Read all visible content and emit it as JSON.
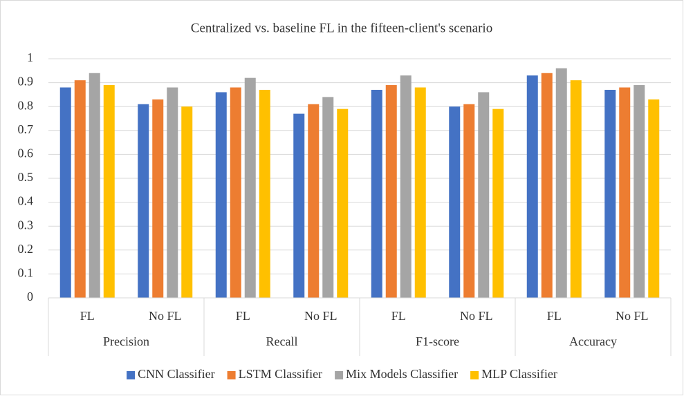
{
  "chart_data": {
    "type": "bar",
    "title": "Centralized vs. baseline FL in the fifteen-client's scenario",
    "categories": [
      "FL",
      "No FL",
      "FL",
      "No FL",
      "FL",
      "No FL",
      "FL",
      "No FL"
    ],
    "groups": [
      "Precision",
      "Recall",
      "F1-score",
      "Accuracy"
    ],
    "series": [
      {
        "name": "CNN Classifier",
        "color": "#4472c4",
        "values": [
          0.88,
          0.81,
          0.86,
          0.77,
          0.87,
          0.8,
          0.93,
          0.87
        ]
      },
      {
        "name": "LSTM Classifier",
        "color": "#ed7d31",
        "values": [
          0.91,
          0.83,
          0.88,
          0.81,
          0.89,
          0.81,
          0.94,
          0.88
        ]
      },
      {
        "name": "Mix Models Classifier",
        "color": "#a5a5a5",
        "values": [
          0.94,
          0.88,
          0.92,
          0.84,
          0.93,
          0.86,
          0.96,
          0.89
        ]
      },
      {
        "name": "MLP Classifier",
        "color": "#ffc000",
        "values": [
          0.89,
          0.8,
          0.87,
          0.79,
          0.88,
          0.79,
          0.91,
          0.83
        ]
      }
    ],
    "ylim": [
      0,
      1
    ],
    "yticks": [
      0,
      0.1,
      0.2,
      0.3,
      0.4,
      0.5,
      0.6,
      0.7,
      0.8,
      0.9,
      1
    ],
    "grid": true,
    "legend": "bottom"
  }
}
